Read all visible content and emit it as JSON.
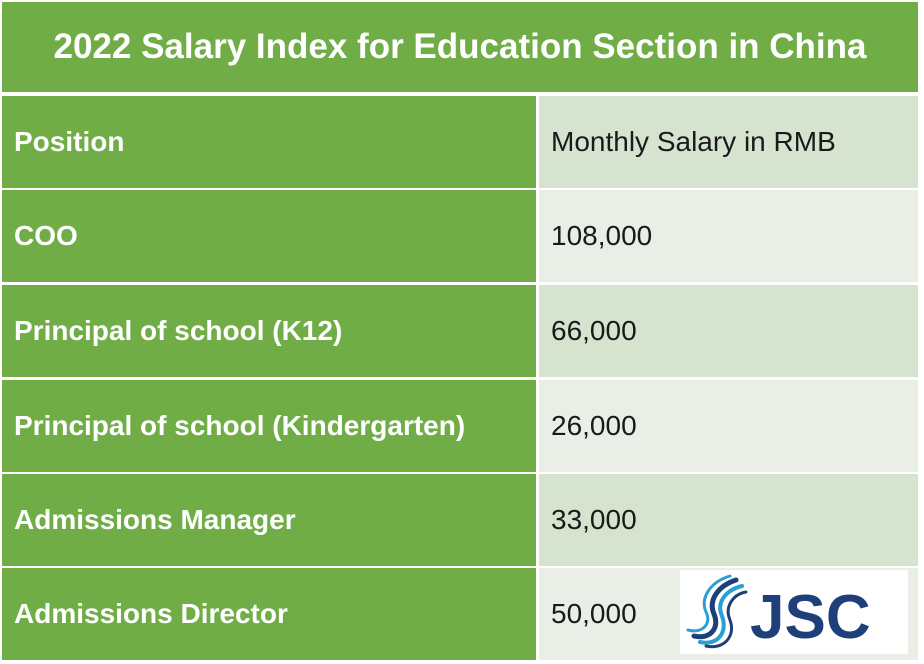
{
  "title": "2022 Salary Index for Education Section in China",
  "header": {
    "position": "Position",
    "salary": "Monthly Salary in RMB"
  },
  "rows": [
    {
      "position": "COO",
      "salary": "108,000"
    },
    {
      "position": "Principal of school (K12)",
      "salary": "66,000"
    },
    {
      "position": "Principal of school (Kindergarten)",
      "salary": "26,000"
    },
    {
      "position": "Admissions Manager",
      "salary": "33,000"
    },
    {
      "position": "Admissions Director",
      "salary": "50,000"
    }
  ],
  "logo": {
    "text": "JSC",
    "icon": "jsc-swirl-logo",
    "color": "#1f3f7a",
    "accent": "#2a9fd6"
  },
  "colors": {
    "green": "#70ad47",
    "shade_a": "#d6e3cf",
    "shade_b": "#e9efe6"
  }
}
